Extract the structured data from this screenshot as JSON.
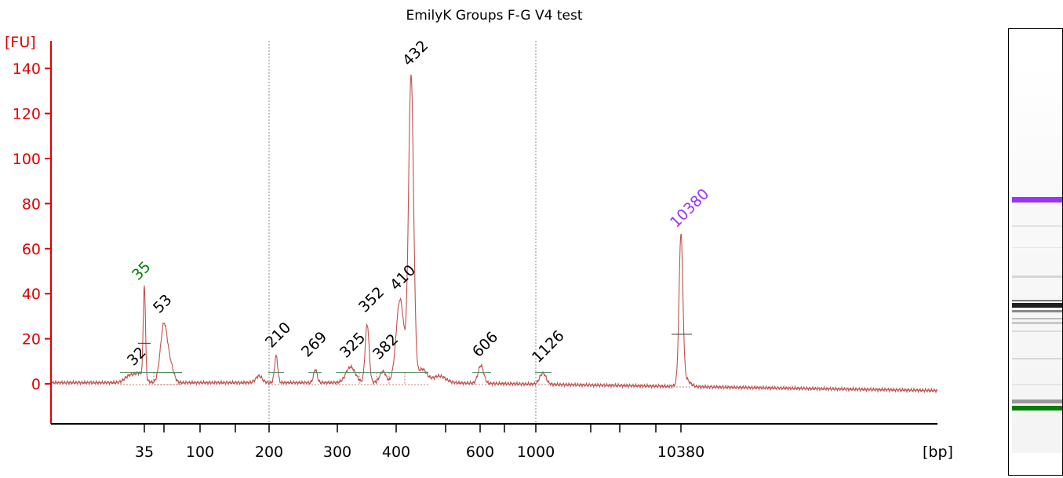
{
  "chart_data": {
    "type": "line",
    "title": "EmilyK Groups F-G V4 test",
    "ylabel": "[FU]",
    "xlabel": "[bp]",
    "ylim": [
      -18,
      150
    ],
    "y_ticks": [
      0,
      20,
      40,
      60,
      80,
      100,
      120,
      140
    ],
    "x_tick_labels": [
      "35",
      "100",
      "200",
      "300",
      "400",
      "600",
      "1000",
      "10380"
    ],
    "grid": false,
    "colors": {
      "trace": "#c0504d",
      "axis": "#e00000",
      "lower_marker": "#008000",
      "upper_marker": "#9933ff",
      "peak_label": "#000000",
      "baseline": "#4a8a5a"
    },
    "peaks": [
      {
        "label": "35",
        "bp": 35,
        "fu": 41,
        "color": "lower_marker"
      },
      {
        "label": "32",
        "bp": 32,
        "fu": 5
      },
      {
        "label": "53",
        "bp": 53,
        "fu": 26
      },
      {
        "label": "210",
        "bp": 210,
        "fu": 12
      },
      {
        "label": "269",
        "bp": 269,
        "fu": 6
      },
      {
        "label": "325",
        "bp": 325,
        "fu": 8
      },
      {
        "label": "352",
        "bp": 352,
        "fu": 28
      },
      {
        "label": "382",
        "bp": 382,
        "fu": 5
      },
      {
        "label": "410",
        "bp": 410,
        "fu": 38
      },
      {
        "label": "432",
        "bp": 432,
        "fu": 137
      },
      {
        "label": "606",
        "bp": 606,
        "fu": 8
      },
      {
        "label": "1126",
        "bp": 1126,
        "fu": 5
      },
      {
        "label": "10380",
        "bp": 10380,
        "fu": 65,
        "color": "upper_marker"
      }
    ]
  }
}
